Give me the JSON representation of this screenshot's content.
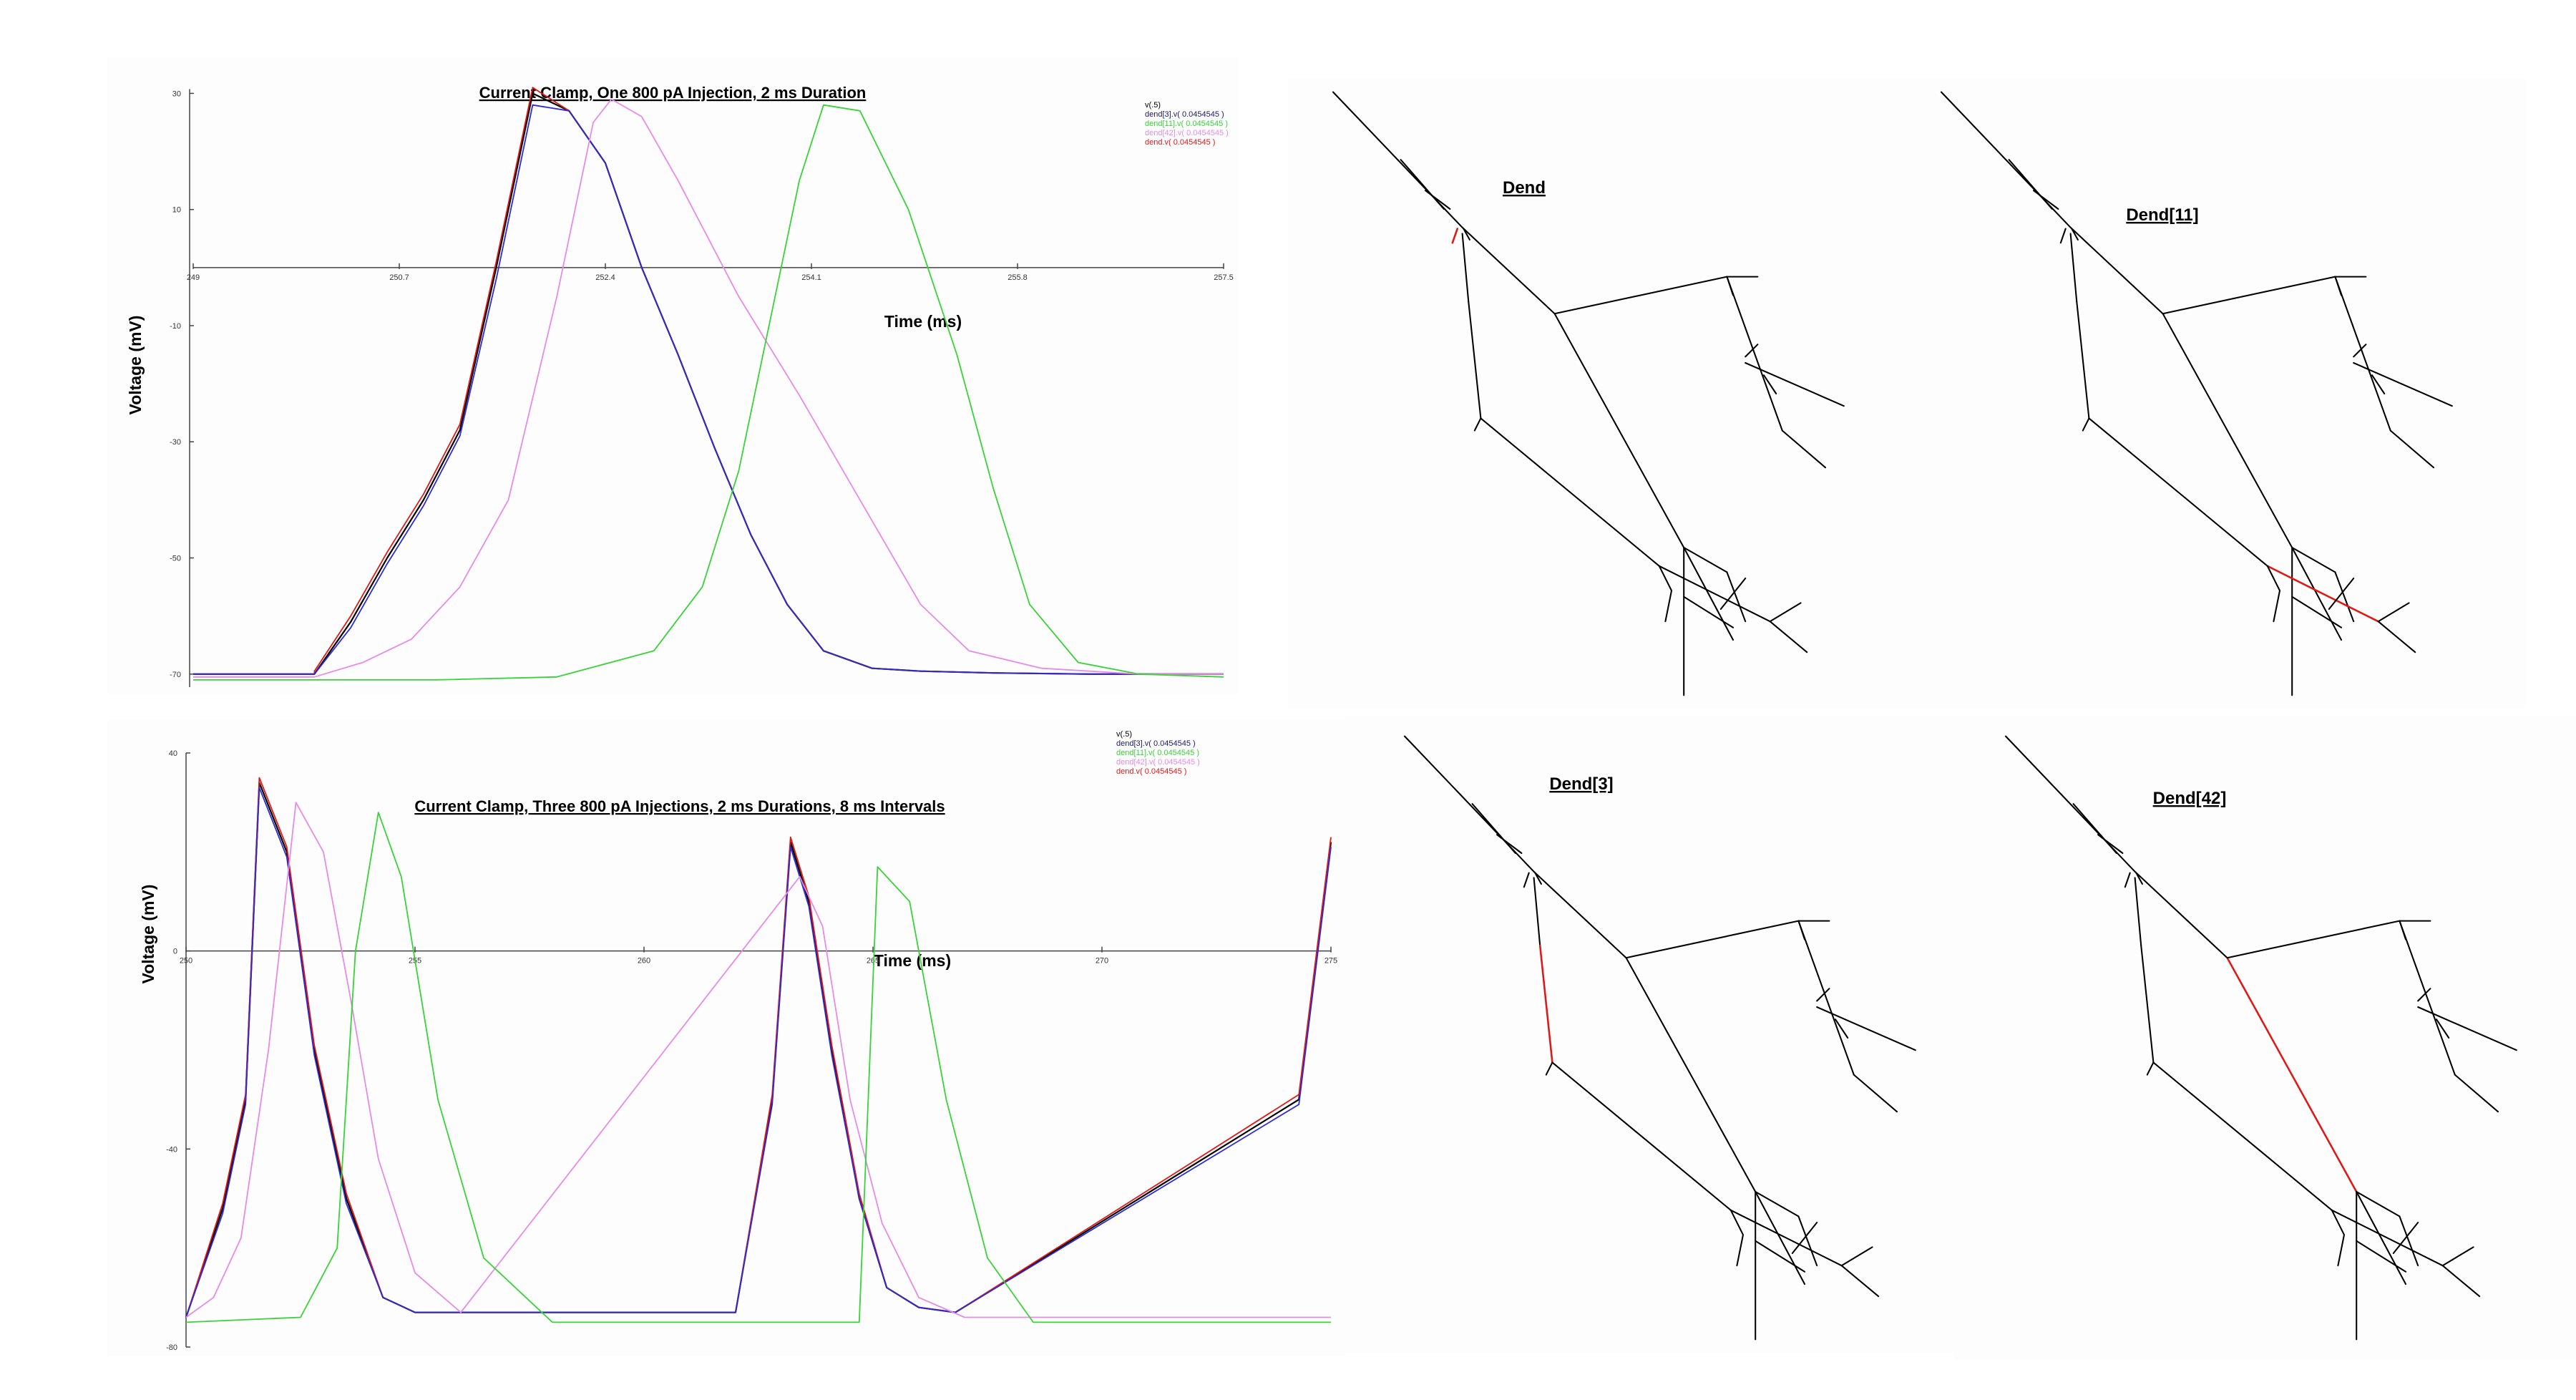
{
  "colors": {
    "black": "#000000",
    "blue": "#2b2bd6",
    "green": "#37d337",
    "pink": "#e68be6",
    "red": "#e01818",
    "navy": "#1a1a66"
  },
  "chart_data": [
    {
      "type": "line",
      "title": "Current Clamp, One 800 pA Injection, 2 ms Duration",
      "xlabel": "Time (ms)",
      "ylabel": "Voltage (mV)",
      "xlim": [
        249,
        257.5
      ],
      "ylim": [
        -72,
        34
      ],
      "x_ticks": [
        "249",
        "250.7",
        "252.4",
        "254.1",
        "255.8",
        "257.5"
      ],
      "x_tick_values": [
        249,
        250.7,
        252.4,
        254.1,
        255.8,
        257.5
      ],
      "y_ticks": [
        "30",
        "10",
        "-10",
        "-30",
        "-50",
        "-70"
      ],
      "y_tick_values": [
        30,
        10,
        -10,
        -30,
        -50,
        -70
      ],
      "legend": [
        "v(.5)",
        "dend[3].v( 0.0454545 )",
        "dend[11].v( 0.0454545 )",
        "dend[42].v( 0.0454545 )",
        "dend.v( 0.0454545 )"
      ],
      "series": [
        {
          "name": "v(.5)",
          "color": "black",
          "x": [
            249,
            250,
            250,
            250.3,
            250.6,
            250.9,
            251.2,
            251.5,
            251.8,
            252.1,
            252.4,
            252.7,
            253,
            253.3,
            253.6,
            253.9,
            254.2,
            254.6,
            255,
            255.6,
            256.4,
            257.5
          ],
          "y": [
            -70,
            -70,
            -70,
            -61,
            -50,
            -40,
            -28,
            0,
            30,
            27,
            18,
            0,
            -15,
            -31,
            -46,
            -58,
            -66,
            -69,
            -69.5,
            -69.8,
            -70,
            -70
          ]
        },
        {
          "name": "dend[3].v( 0.0454545 )",
          "color": "blue",
          "x": [
            249,
            250,
            250,
            250.3,
            250.6,
            250.9,
            251.2,
            251.5,
            251.8,
            252.1,
            252.4,
            252.7,
            253,
            253.3,
            253.6,
            253.9,
            254.2,
            254.6,
            255,
            255.6,
            256.4,
            257.5
          ],
          "y": [
            -70,
            -70,
            -70,
            -62,
            -51,
            -41,
            -29,
            -2,
            28,
            27,
            18,
            0,
            -15,
            -31,
            -46,
            -58,
            -66,
            -69,
            -69.5,
            -69.8,
            -70,
            -70
          ]
        },
        {
          "name": "dend[11].v( 0.0454545 )",
          "color": "green",
          "x": [
            249,
            250,
            251,
            252,
            252.8,
            253.2,
            253.5,
            253.8,
            254,
            254.2,
            254.5,
            254.9,
            255.3,
            255.6,
            255.9,
            256.3,
            256.8,
            257.5
          ],
          "y": [
            -71,
            -71,
            -71,
            -70.5,
            -66,
            -55,
            -35,
            -5,
            15,
            28,
            27,
            10,
            -15,
            -38,
            -58,
            -68,
            -70,
            -70.5
          ]
        },
        {
          "name": "dend[42].v( 0.0454545 )",
          "color": "pink",
          "x": [
            249,
            250,
            250.4,
            250.8,
            251.2,
            251.6,
            252,
            252.3,
            252.45,
            252.7,
            253,
            253.5,
            254,
            254.5,
            255,
            255.4,
            256,
            256.8,
            257.5
          ],
          "y": [
            -70.5,
            -70.5,
            -68,
            -64,
            -55,
            -40,
            -5,
            25,
            29,
            26,
            15,
            -5,
            -22,
            -40,
            -58,
            -66,
            -69,
            -70,
            -70
          ]
        },
        {
          "name": "dend.v( 0.0454545 )",
          "color": "red",
          "x": [
            249,
            250,
            250,
            250.3,
            250.6,
            250.9,
            251.2,
            251.5,
            251.8,
            252.1,
            252.4,
            252.7,
            253,
            253.3,
            253.6,
            253.9,
            254.2,
            254.6,
            255,
            255.6,
            256.4,
            257.5
          ],
          "y": [
            -70,
            -70,
            -69.5,
            -60,
            -49,
            -39,
            -27,
            1,
            31,
            27,
            18,
            0,
            -15,
            -31,
            -46,
            -58,
            -66,
            -69,
            -69.5,
            -69.8,
            -70,
            -70
          ]
        }
      ]
    },
    {
      "type": "line",
      "title": "Current Clamp, Three 800 pA Injections, 2 ms Durations, 8 ms Intervals",
      "xlabel": "Time (ms)",
      "ylabel": "Voltage (mV)",
      "xlim": [
        250,
        275
      ],
      "ylim": [
        -80,
        40
      ],
      "x_ticks": [
        "250",
        "255",
        "260",
        "265",
        "270",
        "275"
      ],
      "x_tick_values": [
        250,
        255,
        260,
        265,
        270,
        275
      ],
      "y_ticks": [
        "40",
        "0",
        "-40",
        "-80"
      ],
      "y_tick_values": [
        40,
        0,
        -40,
        -80
      ],
      "legend": [
        "v(.5)",
        "dend[3].v( 0.0454545 )",
        "dend[11].v( 0.0454545 )",
        "dend[42].v( 0.0454545 )",
        "dend.v( 0.0454545 )"
      ],
      "series": [
        {
          "name": "v(.5)",
          "color": "black",
          "x": [
            250,
            250.8,
            251.3,
            251.6,
            252.2,
            252.8,
            253.5,
            254.3,
            255,
            262,
            262.8,
            263.2,
            263.6,
            264.1,
            264.7,
            265.3,
            266,
            266.8,
            274.3,
            275
          ],
          "y": [
            -74,
            -52,
            -30,
            34,
            20,
            -20,
            -50,
            -70,
            -73,
            -73,
            -30,
            22,
            10,
            -20,
            -50,
            -68,
            -72,
            -73,
            -30,
            22
          ]
        },
        {
          "name": "dend[3].v( 0.0454545 )",
          "color": "blue",
          "x": [
            250,
            250.8,
            251.3,
            251.6,
            252.2,
            252.8,
            253.5,
            254.3,
            255,
            262,
            262.8,
            263.2,
            263.6,
            264.1,
            264.7,
            265.3,
            266,
            266.8,
            274.3,
            275
          ],
          "y": [
            -74,
            -53,
            -31,
            33,
            19,
            -21,
            -51,
            -70,
            -73,
            -73,
            -31,
            21,
            9,
            -21,
            -50,
            -68,
            -72,
            -73,
            -31,
            21
          ]
        },
        {
          "name": "dend[11].v( 0.0454545 )",
          "color": "green",
          "x": [
            250,
            252.5,
            253.3,
            253.7,
            254.2,
            254.7,
            255.5,
            256.5,
            258,
            264.7,
            265.1,
            265.8,
            266.6,
            267.5,
            268.5,
            275
          ],
          "y": [
            -75,
            -74,
            -60,
            0,
            28,
            15,
            -30,
            -62,
            -75,
            -75,
            17,
            10,
            -30,
            -62,
            -75,
            -75
          ]
        },
        {
          "name": "dend[42].v( 0.0454545 )",
          "color": "pink",
          "x": [
            250,
            250.6,
            251.2,
            251.8,
            252.4,
            253,
            253.6,
            254.2,
            255,
            256,
            263.4,
            263.9,
            264.5,
            265.2,
            266,
            267,
            275
          ],
          "y": [
            -74,
            -70,
            -58,
            -20,
            30,
            20,
            -10,
            -42,
            -65,
            -73,
            15,
            5,
            -30,
            -55,
            -70,
            -74,
            -74
          ]
        },
        {
          "name": "dend.v( 0.0454545 )",
          "color": "red",
          "x": [
            250,
            250.8,
            251.3,
            251.6,
            252.2,
            252.8,
            253.5,
            254.3,
            255,
            262,
            262.8,
            263.2,
            263.6,
            264.1,
            264.7,
            265.3,
            266,
            266.8,
            274.3,
            275
          ],
          "y": [
            -74,
            -51,
            -29,
            35,
            21,
            -19,
            -49,
            -70,
            -73,
            -73,
            -29,
            23,
            11,
            -19,
            -49,
            -68,
            -72,
            -73,
            -29,
            23
          ]
        }
      ]
    }
  ],
  "morphology": {
    "panels": [
      {
        "title": "Dend"
      },
      {
        "title": "Dend[11]"
      },
      {
        "title": "Dend[3]"
      },
      {
        "title": "Dend[42]"
      }
    ]
  }
}
